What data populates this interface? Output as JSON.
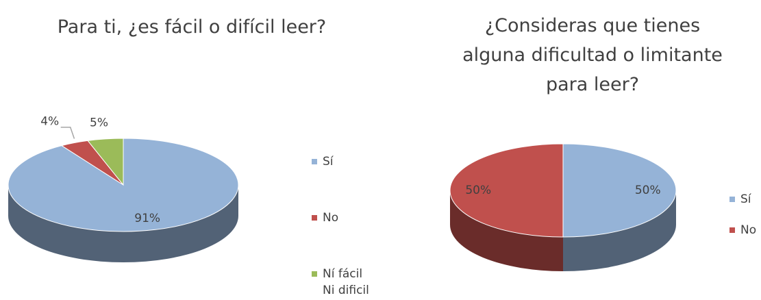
{
  "chart_data": [
    {
      "type": "pie3d",
      "title": "Para ti, ¿es fácil o difícil leer?",
      "categories": [
        "Sí",
        "No",
        "Ní fácil Ni dificil"
      ],
      "values": [
        91,
        4,
        5
      ],
      "value_labels": [
        "91%",
        "4%",
        "5%"
      ],
      "colors": [
        "#95b3d7",
        "#c0504d",
        "#9bbb59"
      ],
      "legend": "right"
    },
    {
      "type": "pie3d",
      "title": "¿Consideras que tienes alguna dificultad o limitante para leer?",
      "categories": [
        "Sí",
        "No"
      ],
      "values": [
        50,
        50
      ],
      "value_labels": [
        "50%",
        "50%"
      ],
      "colors": [
        "#95b3d7",
        "#c0504d"
      ],
      "legend": "right"
    }
  ]
}
